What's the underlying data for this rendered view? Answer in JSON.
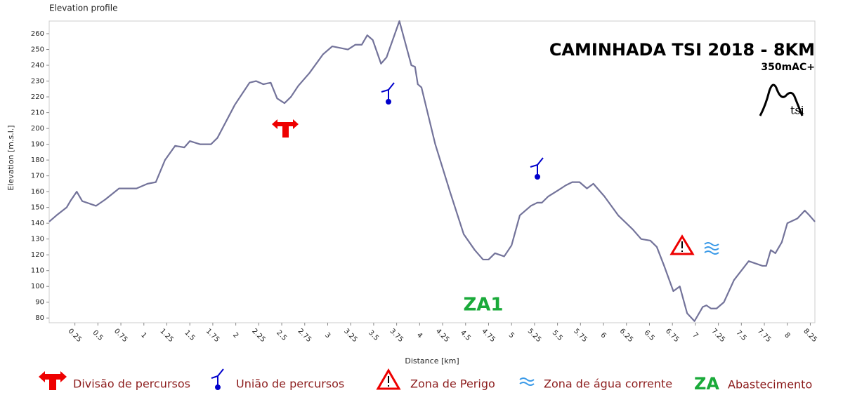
{
  "chart_data": {
    "type": "line",
    "header": "Elevation profile",
    "title": "CAMINHADA TSI 2018 - 8KM",
    "subtitle": "350mAC+",
    "logo_text": "tsi",
    "x_label": "Distance [km]",
    "y_label": "Elevation [m.s.l.]",
    "annotation": "ZA1",
    "xlim": [
      -0.03,
      8.3
    ],
    "ylim": [
      77,
      268
    ],
    "xticks": [
      0.25,
      0.5,
      0.75,
      1,
      1.25,
      1.5,
      1.75,
      2,
      2.25,
      2.5,
      2.75,
      3,
      3.25,
      3.5,
      3.75,
      4,
      4.25,
      4.5,
      4.75,
      5,
      5.25,
      5.5,
      5.75,
      6,
      6.25,
      6.5,
      6.75,
      7,
      7.25,
      7.5,
      7.75,
      8,
      8.25
    ],
    "yticks": [
      80,
      90,
      100,
      110,
      120,
      130,
      140,
      150,
      160,
      170,
      180,
      190,
      200,
      210,
      220,
      230,
      240,
      250,
      260
    ],
    "series": [
      {
        "color": "#73739a",
        "x": [
          -0.03,
          0.05,
          0.16,
          0.2,
          0.27,
          0.33,
          0.43,
          0.48,
          0.58,
          0.73,
          0.92,
          1.04,
          1.13,
          1.23,
          1.34,
          1.44,
          1.5,
          1.61,
          1.73,
          1.8,
          1.99,
          2.15,
          2.22,
          2.3,
          2.38,
          2.45,
          2.53,
          2.6,
          2.68,
          2.8,
          2.95,
          3.05,
          3.22,
          3.3,
          3.37,
          3.43,
          3.49,
          3.58,
          3.64,
          3.78,
          3.91,
          3.95,
          3.98,
          4.02,
          4.17,
          4.33,
          4.48,
          4.6,
          4.69,
          4.75,
          4.82,
          4.92,
          5.0,
          5.09,
          5.21,
          5.28,
          5.33,
          5.4,
          5.51,
          5.59,
          5.66,
          5.74,
          5.82,
          5.89,
          6.01,
          6.16,
          6.32,
          6.41,
          6.51,
          6.58,
          6.66,
          6.76,
          6.83,
          6.91,
          6.99,
          7.08,
          7.12,
          7.17,
          7.23,
          7.31,
          7.42,
          7.58,
          7.73,
          7.77,
          7.82,
          7.87,
          7.94,
          8.0,
          8.11,
          8.19,
          8.24,
          8.3
        ],
        "values": [
          141,
          145,
          150,
          154,
          160,
          154,
          152,
          151,
          155,
          162,
          162,
          165,
          166,
          180,
          189,
          188,
          192,
          190,
          190,
          194,
          215,
          229,
          230,
          228,
          229,
          219,
          216,
          220,
          227,
          235,
          247,
          252,
          250,
          253,
          253,
          259,
          256,
          241,
          245,
          268,
          240,
          239,
          228,
          226,
          190,
          160,
          133,
          123,
          117,
          117,
          121,
          119,
          126,
          145,
          151,
          153,
          153,
          157,
          161,
          164,
          166,
          166,
          162,
          165,
          157,
          145,
          136,
          130,
          129,
          125,
          113,
          97,
          100,
          83,
          78,
          87,
          88,
          86,
          86,
          90,
          104,
          116,
          113,
          113,
          123,
          121,
          128,
          140,
          143,
          148,
          145,
          141
        ]
      }
    ],
    "legend": [
      "Divisão de percursos",
      "União de percursos",
      "Zona de Perigo",
      "Zona de água corrente",
      "ZA",
      "Abastecimento"
    ]
  }
}
